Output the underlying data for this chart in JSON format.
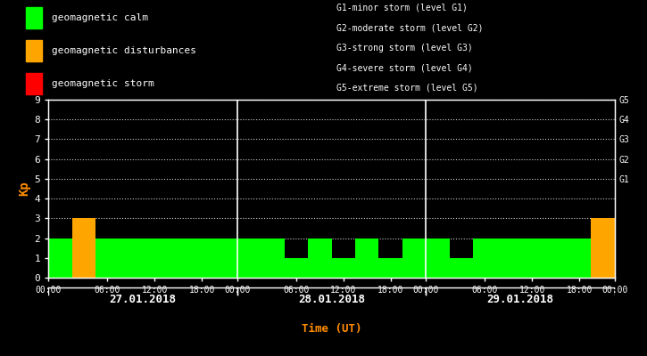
{
  "background_color": "#000000",
  "plot_bg_color": "#000000",
  "bar_color_calm": "#00ff00",
  "bar_color_disturb": "#ffa500",
  "bar_color_storm": "#ff0000",
  "text_color": "#ffffff",
  "label_color_kp": "#ff8c00",
  "label_color_time": "#ff8c00",
  "day_labels": [
    "27.01.2018",
    "28.01.2018",
    "29.01.2018"
  ],
  "kp_values_day1": [
    2,
    3,
    2,
    2,
    2,
    2,
    2,
    2
  ],
  "kp_values_day2": [
    2,
    2,
    1,
    2,
    1,
    2,
    1,
    2
  ],
  "kp_values_day3": [
    2,
    1,
    2,
    2,
    2,
    2,
    2,
    3
  ],
  "ylim": [
    0,
    9
  ],
  "yticks": [
    0,
    1,
    2,
    3,
    4,
    5,
    6,
    7,
    8,
    9
  ],
  "ylabel": "Kp",
  "xlabel": "Time (UT)",
  "legend_calm": "geomagnetic calm",
  "legend_disturb": "geomagnetic disturbances",
  "legend_storm": "geomagnetic storm",
  "g_labels": [
    "G5",
    "G4",
    "G3",
    "G2",
    "G1"
  ],
  "g_levels": [
    9,
    8,
    7,
    6,
    5
  ],
  "g_text": [
    "G1-minor storm (level G1)",
    "G2-moderate storm (level G2)",
    "G3-strong storm (level G3)",
    "G4-severe storm (level G4)",
    "G5-extreme storm (level G5)"
  ],
  "calm_max": 3,
  "disturb_min": 3,
  "disturb_max": 5,
  "storm_min": 5,
  "font_size": 8,
  "legend_font_size": 8,
  "g_text_font_size": 7,
  "bar_width": 1.0
}
